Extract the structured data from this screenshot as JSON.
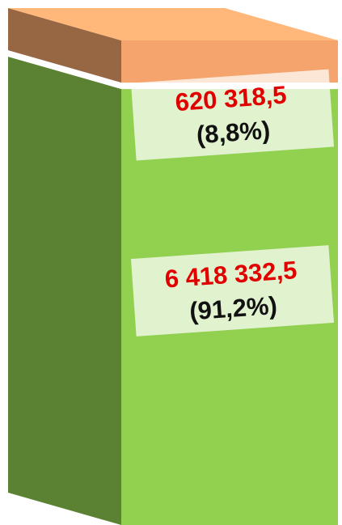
{
  "chart_data": {
    "type": "stacked_bar_3d",
    "series": [
      {
        "color": "#92d050",
        "values": [
          6418332.5
        ],
        "value_labels": [
          "6 418 332,5"
        ],
        "shares": [
          91.2
        ],
        "share_labels": [
          "(91,2%)"
        ]
      },
      {
        "color": "#f4a46c",
        "values": [
          620318.5
        ],
        "value_labels": [
          "620 318,5"
        ],
        "shares": [
          8.8
        ],
        "share_labels": [
          "(8,8%)"
        ]
      }
    ]
  }
}
